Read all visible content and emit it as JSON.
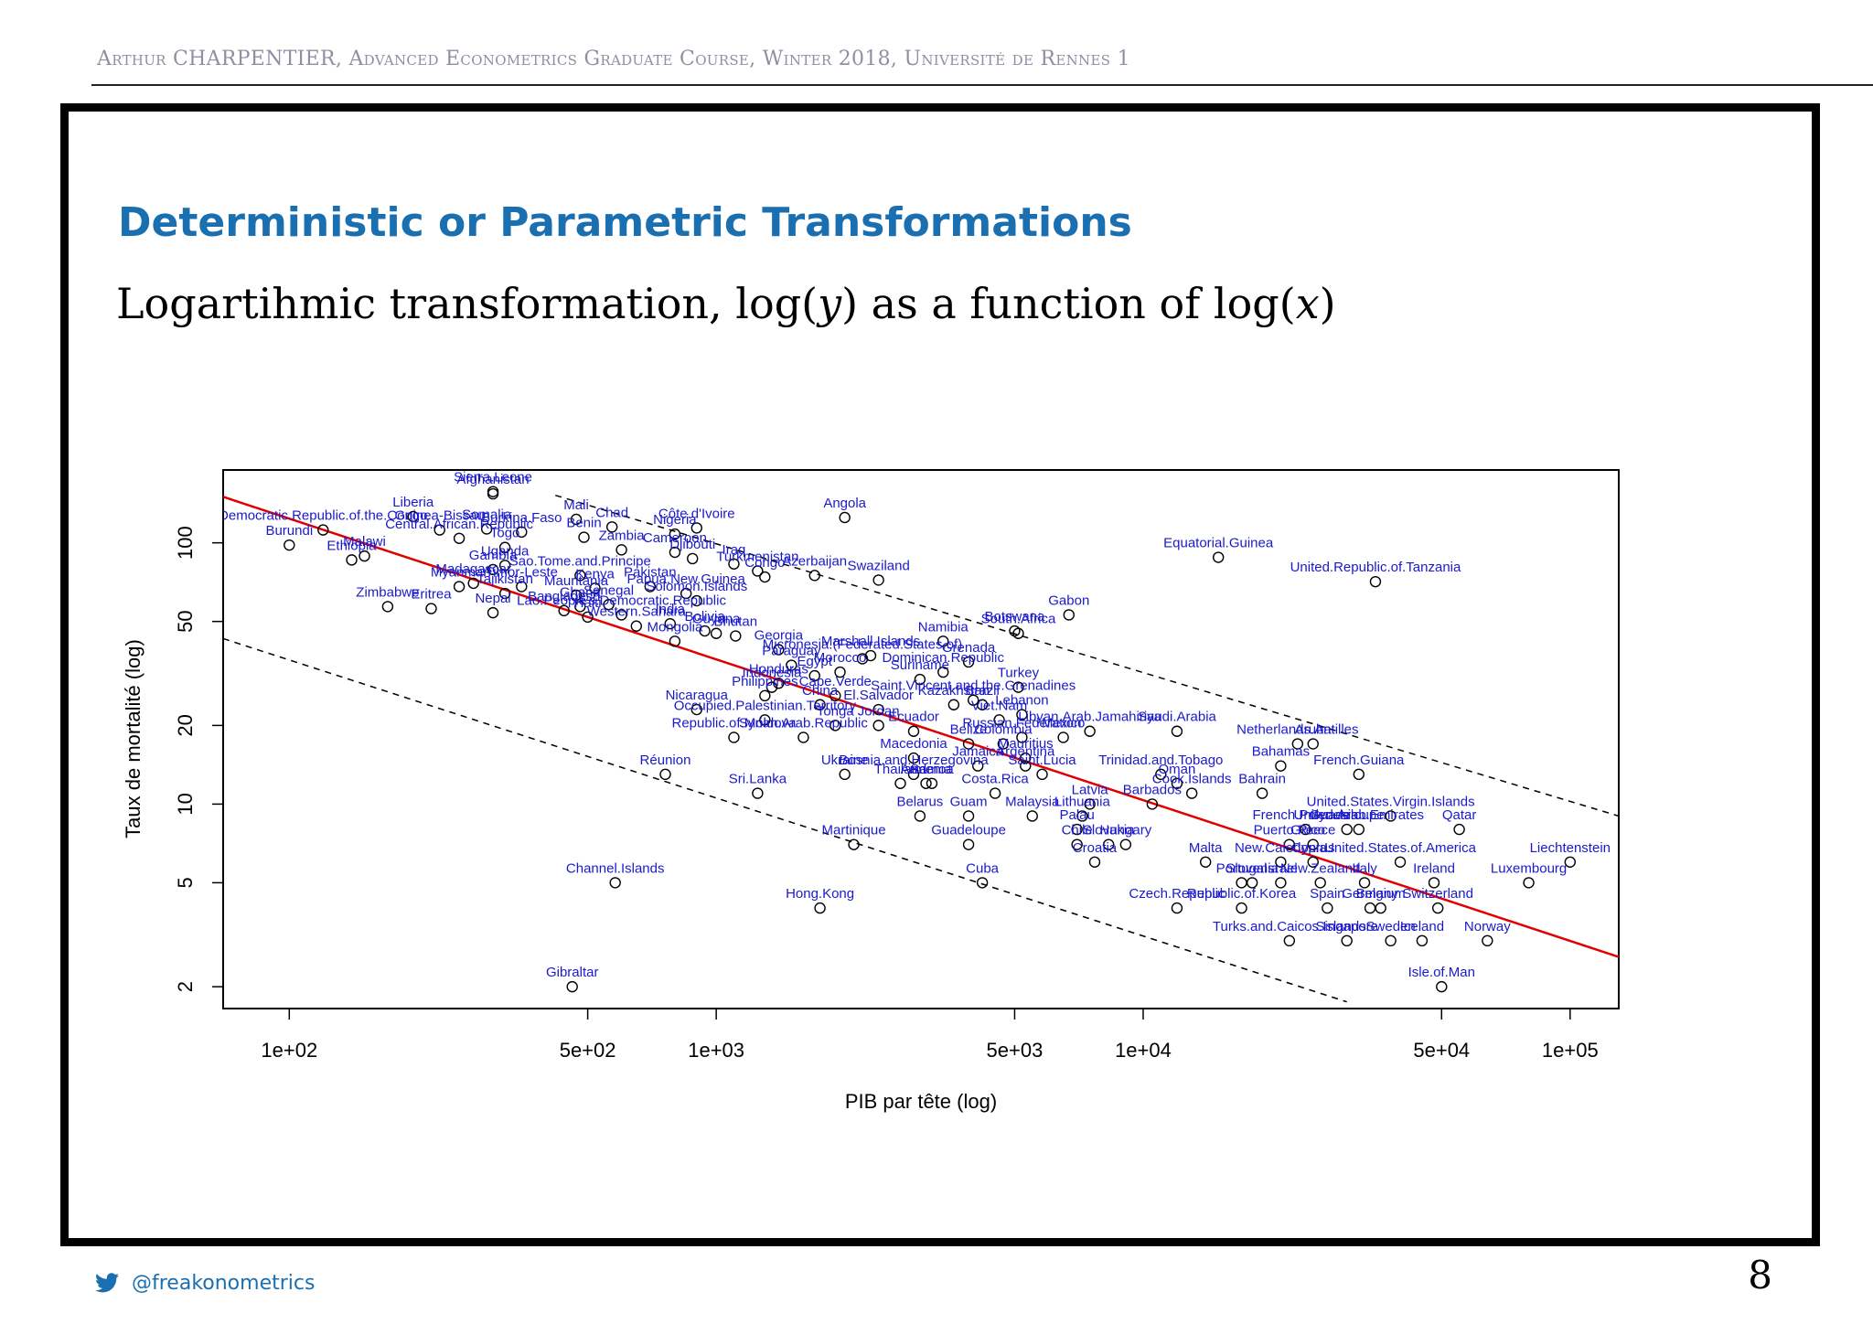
{
  "header": {
    "running_title": "Arthur CHARPENTIER, Advanced Econometrics Graduate Course, Winter 2018, Université de Rennes 1"
  },
  "frame": {
    "title": "Deterministic or Parametric Transformations",
    "subtitle_lead": "Logartihmic transformation, log(",
    "subtitle_var_y": "y",
    "subtitle_mid": ") as a function of log(",
    "subtitle_var_x": "x",
    "subtitle_end": ")"
  },
  "footer": {
    "twitter_icon": "twitter-bird-icon",
    "handle": "@freakonometrics",
    "page_number": "8"
  },
  "colors": {
    "title_blue": "#1a6fb0",
    "label_blue": "#1a1acc",
    "fit_line": "#e00000"
  },
  "chart_data": {
    "type": "scatter",
    "x_scale": "log",
    "y_scale": "log",
    "xlabel": "PIB par tête (log)",
    "ylabel": "Taux de mortalité (log)",
    "xlim": [
      70,
      130000
    ],
    "ylim": [
      1.65,
      190
    ],
    "x_ticks": [
      {
        "value": 100,
        "label": "1e+02"
      },
      {
        "value": 500,
        "label": "5e+02"
      },
      {
        "value": 1000,
        "label": "1e+03"
      },
      {
        "value": 5000,
        "label": "5e+03"
      },
      {
        "value": 10000,
        "label": "1e+04"
      },
      {
        "value": 50000,
        "label": "5e+04"
      },
      {
        "value": 100000,
        "label": "1e+05"
      }
    ],
    "y_ticks": [
      {
        "value": 2,
        "label": "2"
      },
      {
        "value": 5,
        "label": "5"
      },
      {
        "value": 10,
        "label": "10"
      },
      {
        "value": 20,
        "label": "20"
      },
      {
        "value": 50,
        "label": "50"
      },
      {
        "value": 100,
        "label": "100"
      }
    ],
    "regression_line": {
      "x": [
        70,
        130000
      ],
      "y": [
        150,
        2.6
      ]
    },
    "confidence_band": {
      "upper": {
        "x": [
          420,
          130000
        ],
        "y": [
          152,
          9
        ]
      },
      "lower": {
        "x": [
          70,
          30000
        ],
        "y": [
          43,
          1.75
        ]
      }
    },
    "points": [
      {
        "name": "Afghanistan",
        "x": 300,
        "y": 154
      },
      {
        "name": "Sierra.Leone",
        "x": 300,
        "y": 157
      },
      {
        "name": "Liberia",
        "x": 195,
        "y": 126
      },
      {
        "name": "Mali",
        "x": 470,
        "y": 123
      },
      {
        "name": "Chad",
        "x": 570,
        "y": 115
      },
      {
        "name": "Angola",
        "x": 2000,
        "y": 125
      },
      {
        "name": "Côte.d'Ivoire",
        "x": 900,
        "y": 114
      },
      {
        "name": "Nigeria",
        "x": 800,
        "y": 108
      },
      {
        "name": "Somalia",
        "x": 290,
        "y": 113
      },
      {
        "name": "Democratic.Republic.of.the.Congo",
        "x": 120,
        "y": 112
      },
      {
        "name": "Guinea-Bissau",
        "x": 225,
        "y": 112
      },
      {
        "name": "Burkina.Faso",
        "x": 350,
        "y": 110
      },
      {
        "name": "Benin",
        "x": 490,
        "y": 105
      },
      {
        "name": "Burundi",
        "x": 100,
        "y": 98
      },
      {
        "name": "Central.African.Republic",
        "x": 250,
        "y": 104
      },
      {
        "name": "Malawi",
        "x": 150,
        "y": 89
      },
      {
        "name": "Ethiopia",
        "x": 140,
        "y": 86
      },
      {
        "name": "Zambia",
        "x": 600,
        "y": 94
      },
      {
        "name": "Togo",
        "x": 320,
        "y": 96
      },
      {
        "name": "Cameroon",
        "x": 800,
        "y": 92
      },
      {
        "name": "Djibouti",
        "x": 880,
        "y": 87
      },
      {
        "name": "Iraq",
        "x": 1100,
        "y": 83
      },
      {
        "name": "Uganda",
        "x": 320,
        "y": 82
      },
      {
        "name": "Gambia",
        "x": 300,
        "y": 79
      },
      {
        "name": "Sao.Tome.and.Principe",
        "x": 480,
        "y": 75
      },
      {
        "name": "Turkmenistan",
        "x": 1250,
        "y": 78
      },
      {
        "name": "Azerbaijan",
        "x": 1700,
        "y": 75
      },
      {
        "name": "Swaziland",
        "x": 2400,
        "y": 72
      },
      {
        "name": "Equatorial.Guinea",
        "x": 15000,
        "y": 88
      },
      {
        "name": "United.Republic.of.Tanzania",
        "x": 35000,
        "y": 71
      },
      {
        "name": "Madagascar",
        "x": 270,
        "y": 70
      },
      {
        "name": "Myanmar",
        "x": 250,
        "y": 68
      },
      {
        "name": "Timor-Leste",
        "x": 350,
        "y": 68
      },
      {
        "name": "Kenya",
        "x": 520,
        "y": 67
      },
      {
        "name": "Pakistan",
        "x": 700,
        "y": 68
      },
      {
        "name": "Congo",
        "x": 1300,
        "y": 74
      },
      {
        "name": "Tajikistan",
        "x": 320,
        "y": 64
      },
      {
        "name": "Mauritania",
        "x": 470,
        "y": 63
      },
      {
        "name": "Papua.New.Guinea",
        "x": 850,
        "y": 64
      },
      {
        "name": "Zimbabwe",
        "x": 170,
        "y": 57
      },
      {
        "name": "Eritrea",
        "x": 215,
        "y": 56
      },
      {
        "name": "Nepal",
        "x": 300,
        "y": 54
      },
      {
        "name": "Bangladesh",
        "x": 440,
        "y": 55
      },
      {
        "name": "Ghana",
        "x": 480,
        "y": 57
      },
      {
        "name": "Senegal",
        "x": 560,
        "y": 58
      },
      {
        "name": "Solomon.Islands",
        "x": 900,
        "y": 60
      },
      {
        "name": "Haiti",
        "x": 500,
        "y": 52
      },
      {
        "name": "Lao.People's.Democratic.Republic",
        "x": 600,
        "y": 53
      },
      {
        "name": "Western.Sahara",
        "x": 650,
        "y": 48
      },
      {
        "name": "India",
        "x": 780,
        "y": 49
      },
      {
        "name": "Bolivia",
        "x": 940,
        "y": 46
      },
      {
        "name": "Bhutan",
        "x": 1110,
        "y": 44
      },
      {
        "name": "Guyana",
        "x": 1000,
        "y": 45
      },
      {
        "name": "Mongolia",
        "x": 800,
        "y": 42
      },
      {
        "name": "Georgia",
        "x": 1400,
        "y": 39
      },
      {
        "name": "Namibia",
        "x": 3400,
        "y": 42
      },
      {
        "name": "Botswana",
        "x": 5000,
        "y": 46
      },
      {
        "name": "South.Africa",
        "x": 5100,
        "y": 45
      },
      {
        "name": "Gabon",
        "x": 6700,
        "y": 53
      },
      {
        "name": "Marshall.Islands",
        "x": 2300,
        "y": 37
      },
      {
        "name": "Micronesia.(Federated.States.of)",
        "x": 2200,
        "y": 36
      },
      {
        "name": "Grenada",
        "x": 3900,
        "y": 35
      },
      {
        "name": "Paraguay",
        "x": 1500,
        "y": 34
      },
      {
        "name": "Morocco",
        "x": 1950,
        "y": 32
      },
      {
        "name": "Dominican.Republic",
        "x": 3400,
        "y": 32
      },
      {
        "name": "Honduras",
        "x": 1400,
        "y": 29
      },
      {
        "name": "Indonesia",
        "x": 1350,
        "y": 28
      },
      {
        "name": "Egypt",
        "x": 1700,
        "y": 31
      },
      {
        "name": "Suriname",
        "x": 3000,
        "y": 30
      },
      {
        "name": "Turkey",
        "x": 5100,
        "y": 28
      },
      {
        "name": "Cape.Verde",
        "x": 1900,
        "y": 26
      },
      {
        "name": "Philippines",
        "x": 1300,
        "y": 26
      },
      {
        "name": "China",
        "x": 1750,
        "y": 24
      },
      {
        "name": "Saint.Vincent.and.the.Grenadines",
        "x": 4000,
        "y": 25
      },
      {
        "name": "Brazil",
        "x": 4200,
        "y": 24
      },
      {
        "name": "Kazakhstan",
        "x": 3600,
        "y": 24
      },
      {
        "name": "Nicaragua",
        "x": 900,
        "y": 23
      },
      {
        "name": "El.Salvador",
        "x": 2400,
        "y": 23
      },
      {
        "name": "Viet.Nam",
        "x": 4600,
        "y": 21
      },
      {
        "name": "Lebanon",
        "x": 5200,
        "y": 22
      },
      {
        "name": "Occupied.Palestinian.Territory",
        "x": 1300,
        "y": 21
      },
      {
        "name": "Tonga",
        "x": 1900,
        "y": 20
      },
      {
        "name": "Jordan",
        "x": 2400,
        "y": 20
      },
      {
        "name": "Ecuador",
        "x": 2900,
        "y": 19
      },
      {
        "name": "Libyan.Arab.Jamahiriya",
        "x": 7500,
        "y": 19
      },
      {
        "name": "Saudi.Arabia",
        "x": 12000,
        "y": 19
      },
      {
        "name": "Russian.Federation",
        "x": 5200,
        "y": 18
      },
      {
        "name": "Mexico",
        "x": 6500,
        "y": 18
      },
      {
        "name": "Republic.of.Moldova",
        "x": 1100,
        "y": 18
      },
      {
        "name": "Syrian.Arab.Republic",
        "x": 1600,
        "y": 18
      },
      {
        "name": "Belize",
        "x": 3900,
        "y": 17
      },
      {
        "name": "Colombia",
        "x": 4700,
        "y": 17
      },
      {
        "name": "Mauritius",
        "x": 5300,
        "y": 15
      },
      {
        "name": "Aruba",
        "x": 25000,
        "y": 17
      },
      {
        "name": "Netherlands.Antilles",
        "x": 23000,
        "y": 17
      },
      {
        "name": "Macedonia",
        "x": 2900,
        "y": 15
      },
      {
        "name": "Jamaica",
        "x": 4100,
        "y": 14
      },
      {
        "name": "Argentina",
        "x": 5300,
        "y": 14
      },
      {
        "name": "Saint.Lucia",
        "x": 5800,
        "y": 13
      },
      {
        "name": "Bahamas",
        "x": 21000,
        "y": 14
      },
      {
        "name": "French.Guiana",
        "x": 32000,
        "y": 13
      },
      {
        "name": "Réunion",
        "x": 760,
        "y": 13
      },
      {
        "name": "Ukraine",
        "x": 2000,
        "y": 13
      },
      {
        "name": "Bosnia.and.Herzegovina",
        "x": 2900,
        "y": 13
      },
      {
        "name": "Thailand",
        "x": 2700,
        "y": 12
      },
      {
        "name": "Armenia",
        "x": 3100,
        "y": 12
      },
      {
        "name": "Samoa",
        "x": 3200,
        "y": 12
      },
      {
        "name": "Trinidad.and.Tobago",
        "x": 11000,
        "y": 13
      },
      {
        "name": "Oman",
        "x": 12000,
        "y": 12
      },
      {
        "name": "Cook.Islands",
        "x": 13000,
        "y": 11
      },
      {
        "name": "Bahrain",
        "x": 19000,
        "y": 11
      },
      {
        "name": "Sri.Lanka",
        "x": 1250,
        "y": 11
      },
      {
        "name": "Costa.Rica",
        "x": 4500,
        "y": 11
      },
      {
        "name": "Barbados",
        "x": 10500,
        "y": 10
      },
      {
        "name": "Belarus",
        "x": 3000,
        "y": 9
      },
      {
        "name": "Guam",
        "x": 3900,
        "y": 9
      },
      {
        "name": "Malaysia",
        "x": 5500,
        "y": 9
      },
      {
        "name": "Latvia",
        "x": 7500,
        "y": 10
      },
      {
        "name": "Lithuania",
        "x": 7200,
        "y": 9
      },
      {
        "name": "Palau",
        "x": 7000,
        "y": 8
      },
      {
        "name": "United.States.Virgin.Islands",
        "x": 38000,
        "y": 9
      },
      {
        "name": "Guadeloupe",
        "x": 30000,
        "y": 8
      },
      {
        "name": "United.Arab.Emirates",
        "x": 32000,
        "y": 8
      },
      {
        "name": "Qatar",
        "x": 55000,
        "y": 8
      },
      {
        "name": "French.Polynesia",
        "x": 24000,
        "y": 8
      },
      {
        "name": "Martinique",
        "x": 2100,
        "y": 7
      },
      {
        "name": "Guadeloupe",
        "x": 3900,
        "y": 7
      },
      {
        "name": "Chile",
        "x": 7000,
        "y": 7
      },
      {
        "name": "Slovakia",
        "x": 8300,
        "y": 7
      },
      {
        "name": "Hungary",
        "x": 9100,
        "y": 7
      },
      {
        "name": "Croatia",
        "x": 7700,
        "y": 6
      },
      {
        "name": "Puerto.Rico",
        "x": 22000,
        "y": 7
      },
      {
        "name": "Greece",
        "x": 25000,
        "y": 7
      },
      {
        "name": "Malta",
        "x": 14000,
        "y": 6
      },
      {
        "name": "New.Caledonia",
        "x": 21000,
        "y": 6
      },
      {
        "name": "Cyprus",
        "x": 25000,
        "y": 6
      },
      {
        "name": "United.States.of.America",
        "x": 40000,
        "y": 6
      },
      {
        "name": "Liechtenstein",
        "x": 100000,
        "y": 6
      },
      {
        "name": "Channel.Islands",
        "x": 580,
        "y": 5
      },
      {
        "name": "Cuba",
        "x": 4200,
        "y": 5
      },
      {
        "name": "Portugal",
        "x": 17000,
        "y": 5
      },
      {
        "name": "Slovenia",
        "x": 18000,
        "y": 5
      },
      {
        "name": "Israel",
        "x": 21000,
        "y": 5
      },
      {
        "name": "New.Zealand",
        "x": 26000,
        "y": 5
      },
      {
        "name": "Italy",
        "x": 33000,
        "y": 5
      },
      {
        "name": "Ireland",
        "x": 48000,
        "y": 5
      },
      {
        "name": "Luxembourg",
        "x": 80000,
        "y": 5
      },
      {
        "name": "Czech.Republic",
        "x": 12000,
        "y": 4
      },
      {
        "name": "Republic.of.Korea",
        "x": 17000,
        "y": 4
      },
      {
        "name": "Spain",
        "x": 27000,
        "y": 4
      },
      {
        "name": "Germany",
        "x": 34000,
        "y": 4
      },
      {
        "name": "Belgium",
        "x": 36000,
        "y": 4
      },
      {
        "name": "Switzerland",
        "x": 49000,
        "y": 4
      },
      {
        "name": "Hong.Kong",
        "x": 1750,
        "y": 4
      },
      {
        "name": "Turks.and.Caicos.Islands",
        "x": 22000,
        "y": 3
      },
      {
        "name": "Singapore",
        "x": 30000,
        "y": 3
      },
      {
        "name": "Sweden",
        "x": 38000,
        "y": 3
      },
      {
        "name": "Iceland",
        "x": 45000,
        "y": 3
      },
      {
        "name": "Norway",
        "x": 64000,
        "y": 3
      },
      {
        "name": "Isle.of.Man",
        "x": 50000,
        "y": 2
      },
      {
        "name": "Gibraltar",
        "x": 460,
        "y": 2
      }
    ]
  }
}
